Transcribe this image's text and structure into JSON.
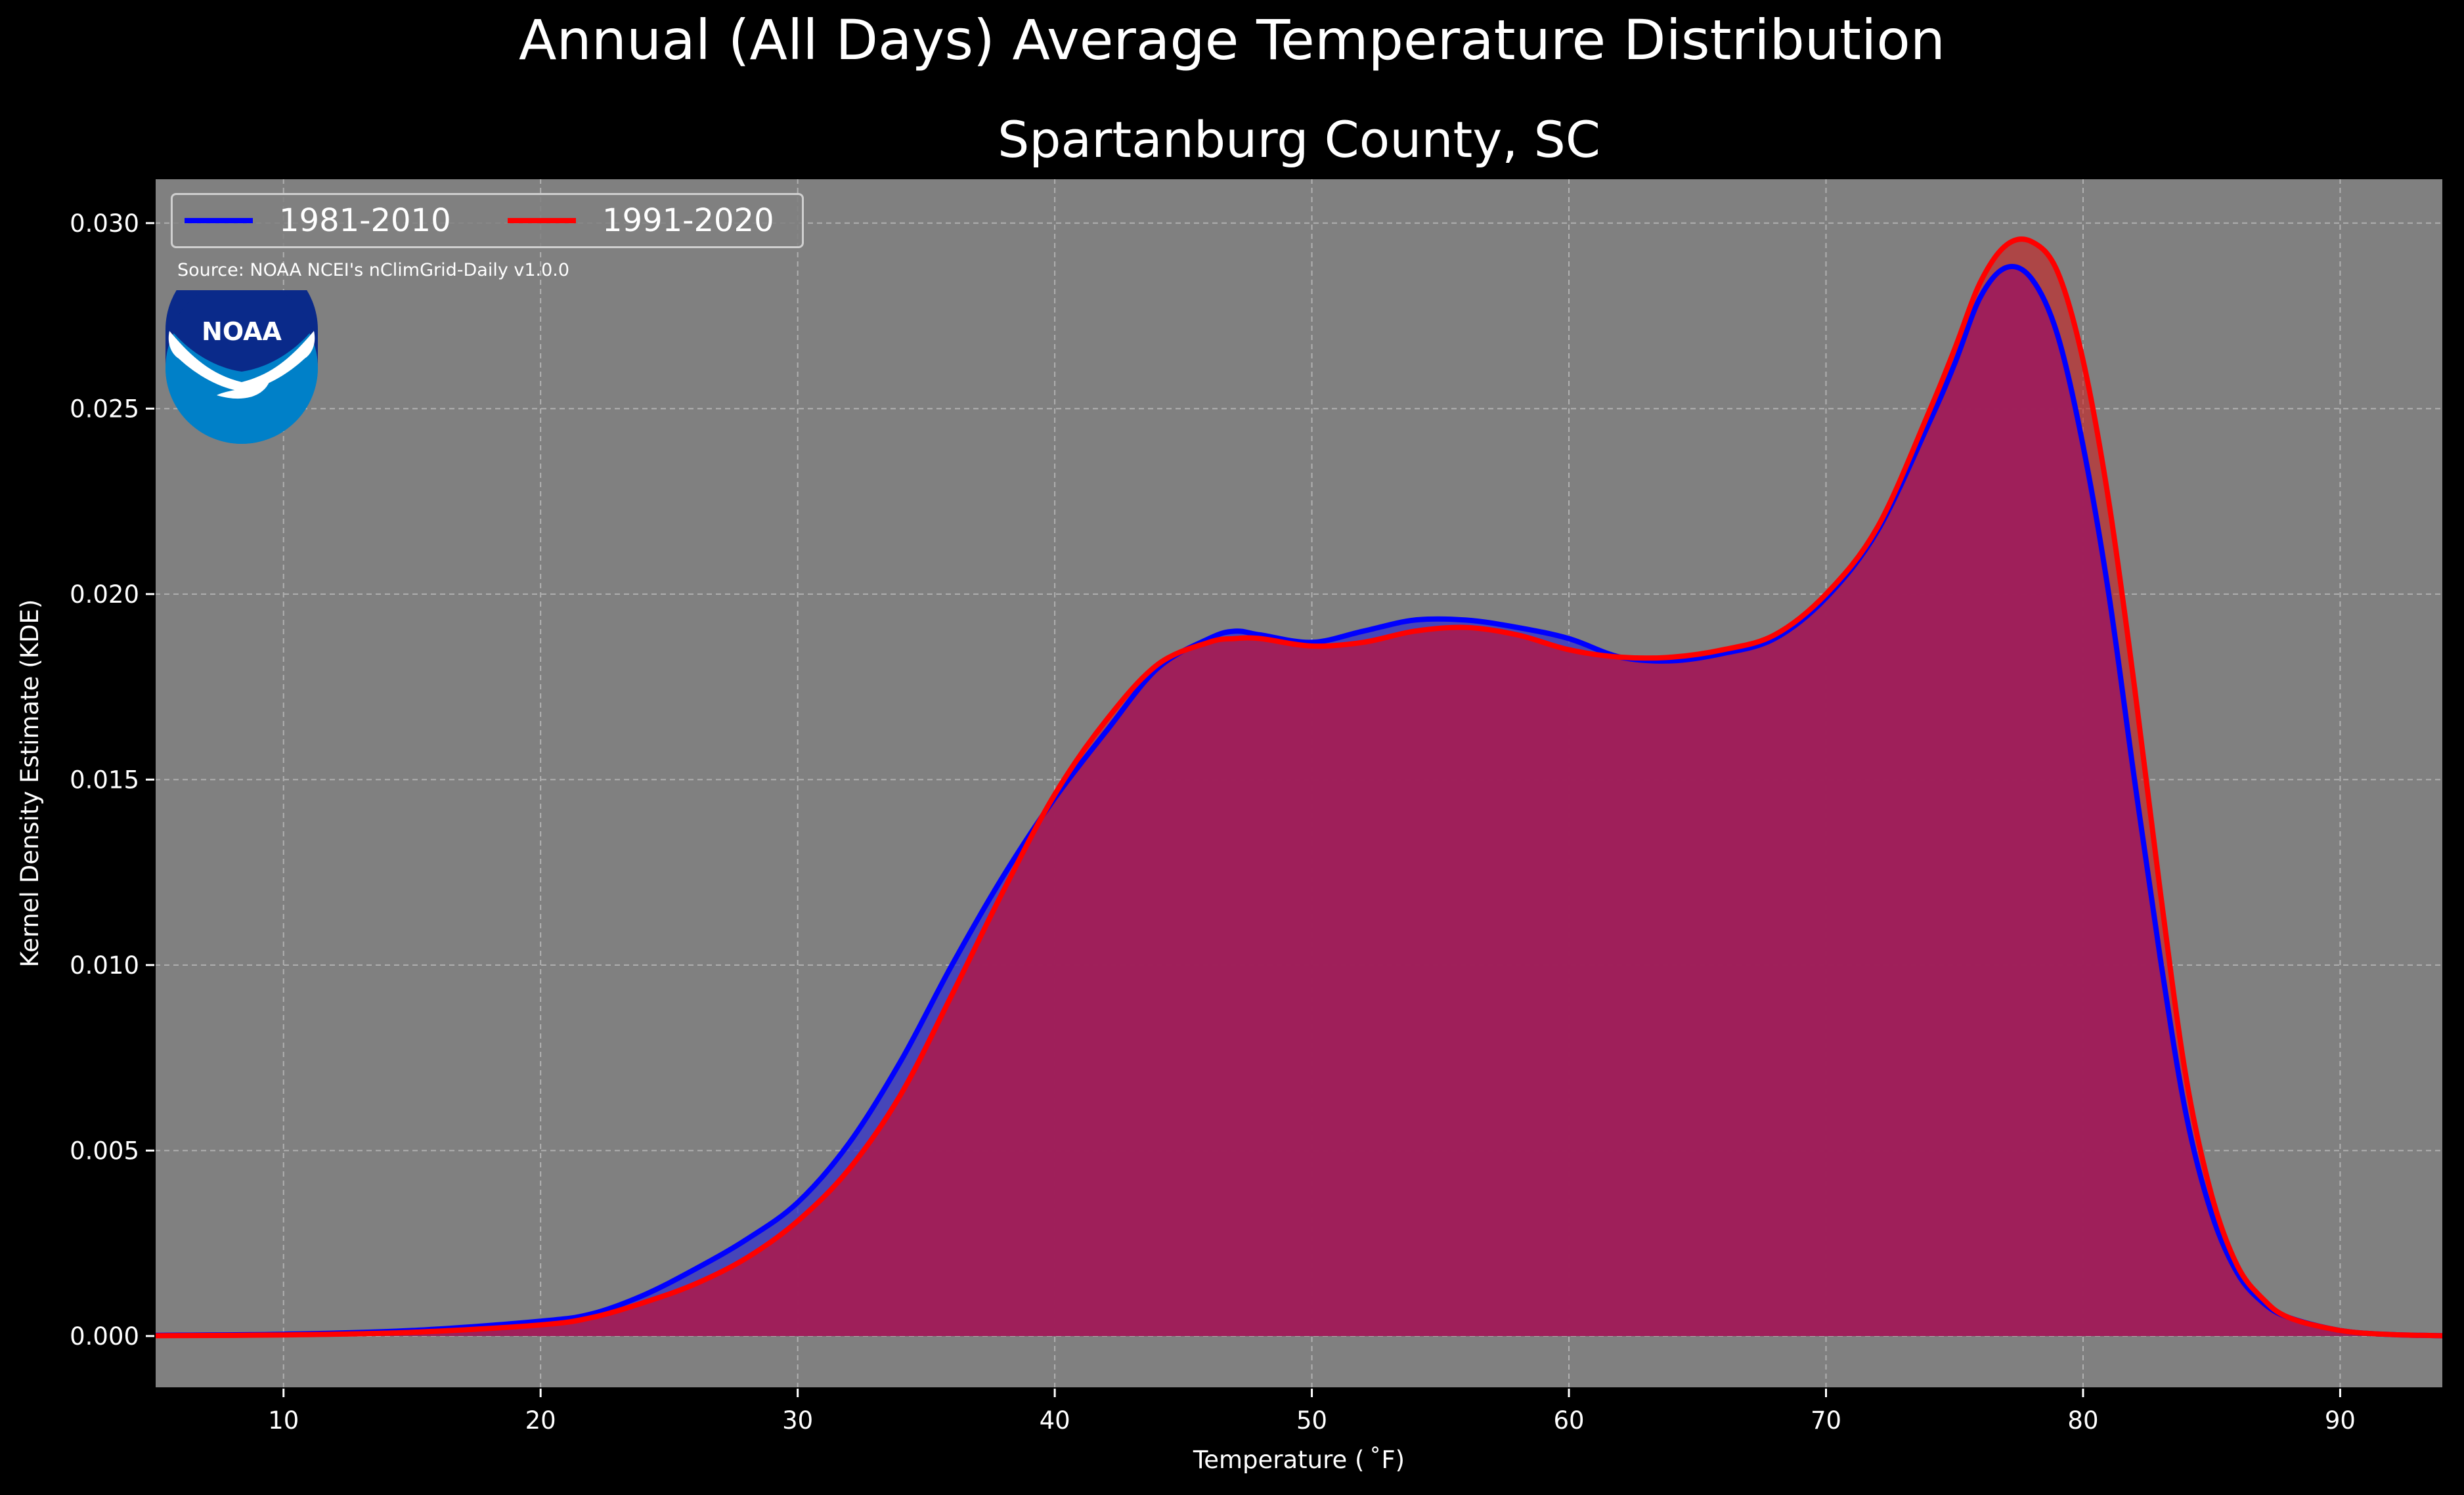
{
  "suptitle": "Annual (All Days) Average Temperature Distribution",
  "subtitle": "Spartanburg County, SC",
  "source": "Source: NOAA NCEI's nClimGrid-Daily v1.0.0",
  "logo_text": "NOAA",
  "chart_data": {
    "type": "area",
    "xlabel": "Temperature ($^\\circ$F)",
    "xlabel_display": "Temperature ( ˚F)",
    "ylabel": "Kernel Density Estimate (KDE)",
    "xlim": [
      5,
      94
    ],
    "ylim": [
      -0.0014,
      0.0312
    ],
    "xticks": [
      10,
      20,
      30,
      40,
      50,
      60,
      70,
      80,
      90
    ],
    "yticks": [
      0.0,
      0.005,
      0.01,
      0.015,
      0.02,
      0.025,
      0.03
    ],
    "ytick_labels": [
      "0.000",
      "0.005",
      "0.010",
      "0.015",
      "0.020",
      "0.025",
      "0.030"
    ],
    "grid": true,
    "legend_placement": "upper-left",
    "series": [
      {
        "name": "1981-2010",
        "color": "#0000ff",
        "fill": "#3333cc",
        "x": [
          5,
          10,
          15,
          20,
          22,
          24,
          26,
          28,
          30,
          32,
          34,
          36,
          38,
          40,
          42,
          44,
          46,
          47,
          48,
          50,
          52,
          54,
          56,
          58,
          60,
          62,
          64,
          66,
          68,
          70,
          72,
          74,
          75,
          76,
          77,
          78,
          79,
          80,
          81,
          82,
          83,
          84,
          85,
          86,
          87,
          88,
          90,
          92,
          94
        ],
        "y": [
          2e-05,
          5e-05,
          0.00015,
          0.0004,
          0.0006,
          0.0011,
          0.0018,
          0.0026,
          0.0036,
          0.0052,
          0.0074,
          0.01,
          0.0124,
          0.0145,
          0.0163,
          0.018,
          0.0188,
          0.019,
          0.0189,
          0.0187,
          0.019,
          0.0193,
          0.0193,
          0.0191,
          0.0188,
          0.0183,
          0.0182,
          0.0184,
          0.0188,
          0.0199,
          0.0217,
          0.0246,
          0.0262,
          0.028,
          0.0288,
          0.0285,
          0.027,
          0.024,
          0.02,
          0.015,
          0.0102,
          0.006,
          0.0033,
          0.0017,
          0.0009,
          0.0005,
          0.00015,
          4e-05,
          1e-05
        ]
      },
      {
        "name": "1991-2020",
        "color": "#ff0000",
        "fill": "#cc2020",
        "x": [
          5,
          10,
          15,
          20,
          22,
          24,
          26,
          28,
          30,
          32,
          34,
          36,
          38,
          40,
          42,
          44,
          46,
          47,
          48,
          50,
          52,
          54,
          56,
          58,
          60,
          62,
          64,
          66,
          68,
          70,
          72,
          74,
          75,
          76,
          77,
          78,
          79,
          80,
          81,
          82,
          83,
          84,
          85,
          86,
          87,
          88,
          90,
          92,
          94
        ],
        "y": [
          1e-05,
          3e-05,
          0.0001,
          0.0003,
          0.0005,
          0.0009,
          0.0014,
          0.0021,
          0.0031,
          0.0045,
          0.0065,
          0.0092,
          0.012,
          0.0146,
          0.0166,
          0.0181,
          0.0187,
          0.0188,
          0.0188,
          0.0186,
          0.0187,
          0.019,
          0.0191,
          0.0189,
          0.0185,
          0.0183,
          0.0183,
          0.0185,
          0.0189,
          0.02,
          0.0218,
          0.0249,
          0.0266,
          0.0284,
          0.0294,
          0.0295,
          0.0287,
          0.0263,
          0.0225,
          0.0175,
          0.012,
          0.007,
          0.0038,
          0.0019,
          0.001,
          0.0005,
          0.00015,
          4e-05,
          1e-05
        ]
      }
    ]
  }
}
